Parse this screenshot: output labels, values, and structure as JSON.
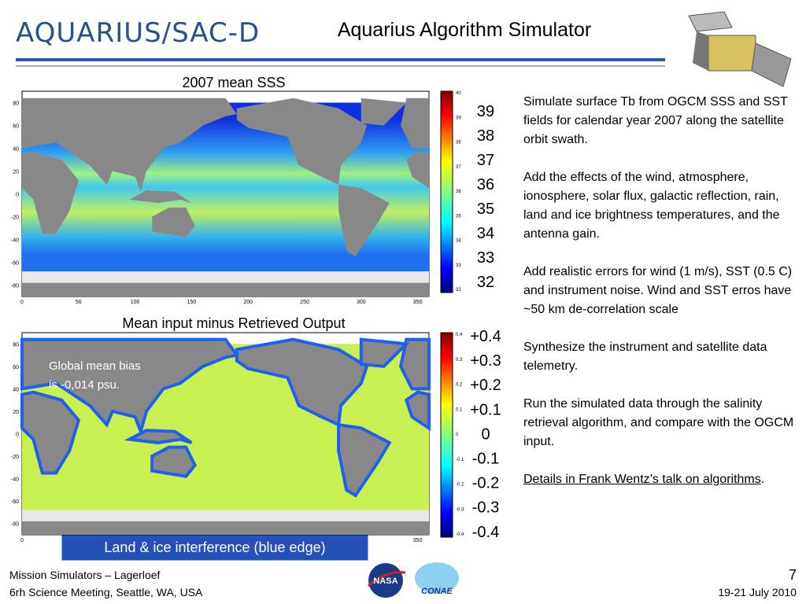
{
  "header": {
    "logo_text": "AQUARIUS/SAC-D",
    "title": "Aquarius Algorithm Simulator"
  },
  "map1": {
    "title": "2007 mean SSS",
    "y_ticks": [
      80,
      60,
      40,
      20,
      0,
      -20,
      -40,
      -60,
      -80
    ],
    "x_ticks": [
      0,
      50,
      100,
      150,
      200,
      250,
      300,
      350
    ],
    "colorbar_small": [
      40,
      39,
      38,
      37,
      36,
      35,
      34,
      33,
      32
    ],
    "colorbar_labels": [
      "39",
      "38",
      "37",
      "36",
      "35",
      "34",
      "33",
      "32"
    ]
  },
  "map2": {
    "title": "Mean input minus Retrieved Output",
    "annotation": "Global mean bias is -0,014 psu.",
    "y_ticks": [
      80,
      60,
      40,
      20,
      0,
      -20,
      -40,
      -60,
      -80
    ],
    "x_ticks": [
      0,
      350
    ],
    "colorbar_small": [
      0.4,
      0.3,
      0.2,
      0.1,
      0,
      -0.1,
      -0.2,
      -0.3,
      -0.4
    ],
    "colorbar_labels": [
      "+0.4",
      "+0.3",
      "+0.2",
      "+0.1",
      "0",
      "-0.1",
      "-0.2",
      "-0.3",
      "-0.4"
    ]
  },
  "callout": "Land & ice interference (blue edge)",
  "body": {
    "paragraphs": [
      "Simulate surface Tb from OGCM SSS and SST fields for calendar year 2007 along the satellite orbit swath.",
      "Add the effects of the wind, atmosphere, ionosphere, solar flux, galactic reflection, rain, land and ice brightness temperatures, and the antenna gain.",
      "Add realistic errors for wind (1 m/s), SST (0.5 C) and instrument noise. Wind and SST erros have ~50 km de-correlation scale",
      "Synthesize the instrument and satellite data telemetry.",
      "Run the simulated data through the salinity retrieval algorithm, and compare with the OGCM input."
    ],
    "link": "Details in Frank Wentz’s talk on algorithms",
    "link_suffix": "."
  },
  "footer": {
    "left_lines": [
      "Mission Simulators – Lagerloef",
      "6rh Science Meeting, Seattle, WA, USA"
    ],
    "logo_nasa": "NASA",
    "logo_conae": "CONAE",
    "page_number": "7",
    "date": "19-21 July 2010"
  }
}
